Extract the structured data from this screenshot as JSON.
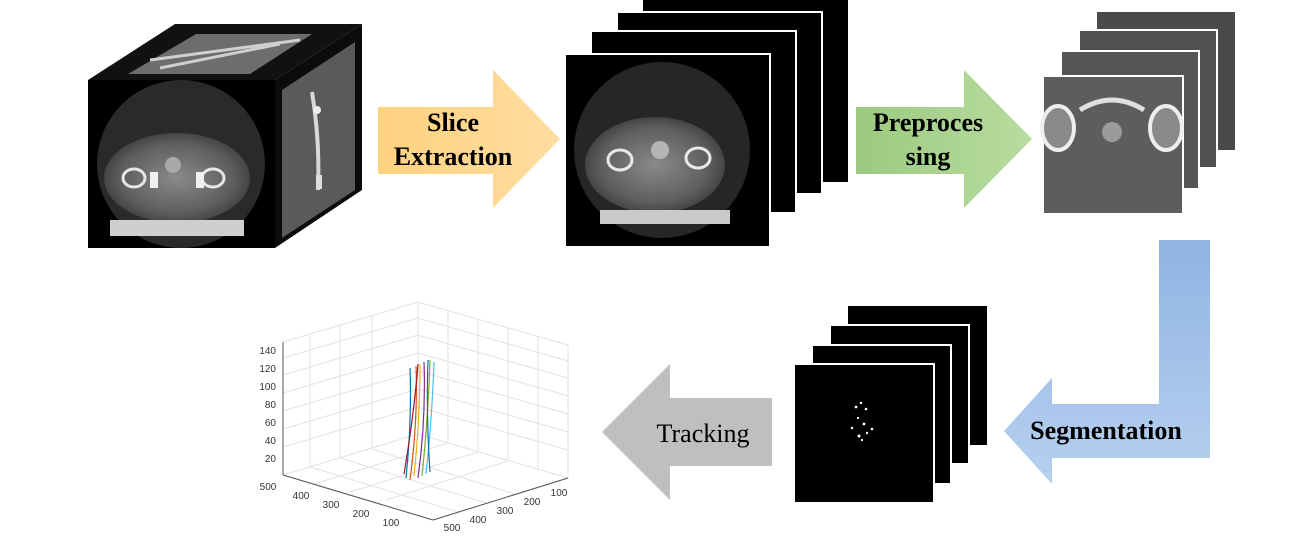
{
  "pipeline": {
    "steps": {
      "slice_extraction": "Slice Extraction",
      "preprocessing_line1": "Preproces",
      "preprocessing_line2": "sing",
      "segmentation": "Segmentation",
      "tracking": "Tracking"
    },
    "colors": {
      "slice_extraction_arrow": "#FFD58A",
      "preprocessing_arrow": "#A8D08D",
      "segmentation_arrow": "#9DC3E6",
      "tracking_arrow": "#BFBFBF"
    }
  },
  "plot3d": {
    "z_ticks": [
      "140",
      "120",
      "100",
      "80",
      "60",
      "40",
      "20"
    ],
    "left_axis_ticks": [
      "500",
      "400",
      "300",
      "200",
      "100"
    ],
    "right_axis_ticks": [
      "500",
      "400",
      "300",
      "200",
      "100"
    ]
  }
}
